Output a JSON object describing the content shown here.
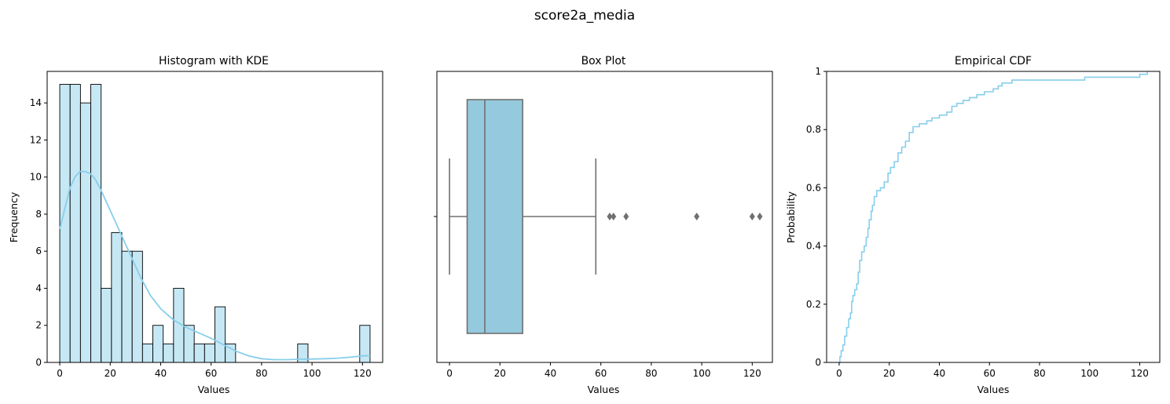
{
  "figure": {
    "title": "score2a_media"
  },
  "chart_data": [
    {
      "type": "bar",
      "subtype": "histogram",
      "title": "Histogram with KDE",
      "xlabel": "Values",
      "ylabel": "Frequency",
      "xlim": [
        -5,
        128
      ],
      "ylim": [
        0,
        15.7
      ],
      "xticks": [
        0,
        20,
        40,
        60,
        80,
        100,
        120
      ],
      "yticks": [
        0,
        2,
        4,
        6,
        8,
        10,
        12,
        14
      ],
      "bin_width": 4.1,
      "bin_start": 0,
      "counts": [
        15,
        15,
        14,
        15,
        4,
        7,
        6,
        6,
        1,
        2,
        1,
        4,
        2,
        1,
        1,
        3,
        1,
        0,
        0,
        0,
        0,
        0,
        0,
        1,
        0,
        0,
        0,
        0,
        0,
        2
      ],
      "kde": {
        "x": [
          0,
          2,
          4,
          6,
          8,
          10,
          12,
          14,
          16,
          18,
          20,
          24,
          28,
          32,
          36,
          40,
          45,
          50,
          55,
          60,
          65,
          70,
          75,
          80,
          85,
          90,
          95,
          100,
          105,
          110,
          115,
          120,
          123
        ],
        "y": [
          7.2,
          8.3,
          9.4,
          10.0,
          10.3,
          10.3,
          10.2,
          9.9,
          9.4,
          8.8,
          8.2,
          7.0,
          5.8,
          4.6,
          3.6,
          2.9,
          2.3,
          1.9,
          1.6,
          1.3,
          0.95,
          0.6,
          0.35,
          0.2,
          0.15,
          0.15,
          0.17,
          0.18,
          0.2,
          0.23,
          0.28,
          0.35,
          0.37
        ]
      },
      "bar_color": "#c6e7f4",
      "line_color": "#87ceeb"
    },
    {
      "type": "box",
      "title": "Box Plot",
      "xlabel": "Values",
      "xlim": [
        -5,
        128
      ],
      "xticks": [
        0,
        20,
        40,
        60,
        80,
        100,
        120
      ],
      "whisker_low": 0,
      "q1": 7,
      "median": 14,
      "q3": 29,
      "whisker_high": 58,
      "outliers": [
        63.5,
        65,
        70,
        98,
        120,
        123
      ],
      "box_color": "#95c9dd",
      "line_color": "#707070"
    },
    {
      "type": "line",
      "subtype": "ecdf",
      "title": "Empirical CDF",
      "xlabel": "Values",
      "ylabel": "Probability",
      "xlim": [
        -5,
        128
      ],
      "ylim": [
        0,
        1
      ],
      "xticks": [
        0,
        20,
        40,
        60,
        80,
        100,
        120
      ],
      "yticks": [
        0.0,
        0.2,
        0.4,
        0.6,
        0.8,
        1.0
      ],
      "points": [
        [
          0,
          0.0
        ],
        [
          0.3,
          0.02
        ],
        [
          0.8,
          0.04
        ],
        [
          1.5,
          0.06
        ],
        [
          2.2,
          0.09
        ],
        [
          3,
          0.12
        ],
        [
          3.8,
          0.15
        ],
        [
          4.5,
          0.17
        ],
        [
          5,
          0.21
        ],
        [
          5.5,
          0.23
        ],
        [
          6.2,
          0.25
        ],
        [
          7,
          0.27
        ],
        [
          7.6,
          0.31
        ],
        [
          8.2,
          0.35
        ],
        [
          9,
          0.38
        ],
        [
          10,
          0.4
        ],
        [
          10.8,
          0.43
        ],
        [
          11.5,
          0.46
        ],
        [
          12,
          0.49
        ],
        [
          12.8,
          0.52
        ],
        [
          13.3,
          0.54
        ],
        [
          14,
          0.57
        ],
        [
          15,
          0.59
        ],
        [
          16.5,
          0.6
        ],
        [
          18,
          0.62
        ],
        [
          19.5,
          0.65
        ],
        [
          20.5,
          0.67
        ],
        [
          22,
          0.69
        ],
        [
          23.5,
          0.72
        ],
        [
          25,
          0.74
        ],
        [
          26.5,
          0.76
        ],
        [
          28,
          0.79
        ],
        [
          29.5,
          0.81
        ],
        [
          32,
          0.82
        ],
        [
          35,
          0.83
        ],
        [
          37,
          0.84
        ],
        [
          40,
          0.85
        ],
        [
          43,
          0.86
        ],
        [
          45,
          0.88
        ],
        [
          47,
          0.89
        ],
        [
          49.5,
          0.9
        ],
        [
          52,
          0.91
        ],
        [
          55,
          0.92
        ],
        [
          58,
          0.93
        ],
        [
          61.5,
          0.94
        ],
        [
          63.5,
          0.95
        ],
        [
          65,
          0.96
        ],
        [
          69,
          0.97
        ],
        [
          98,
          0.98
        ],
        [
          120,
          0.99
        ],
        [
          123,
          1.0
        ]
      ],
      "line_color": "#87ceeb"
    }
  ]
}
